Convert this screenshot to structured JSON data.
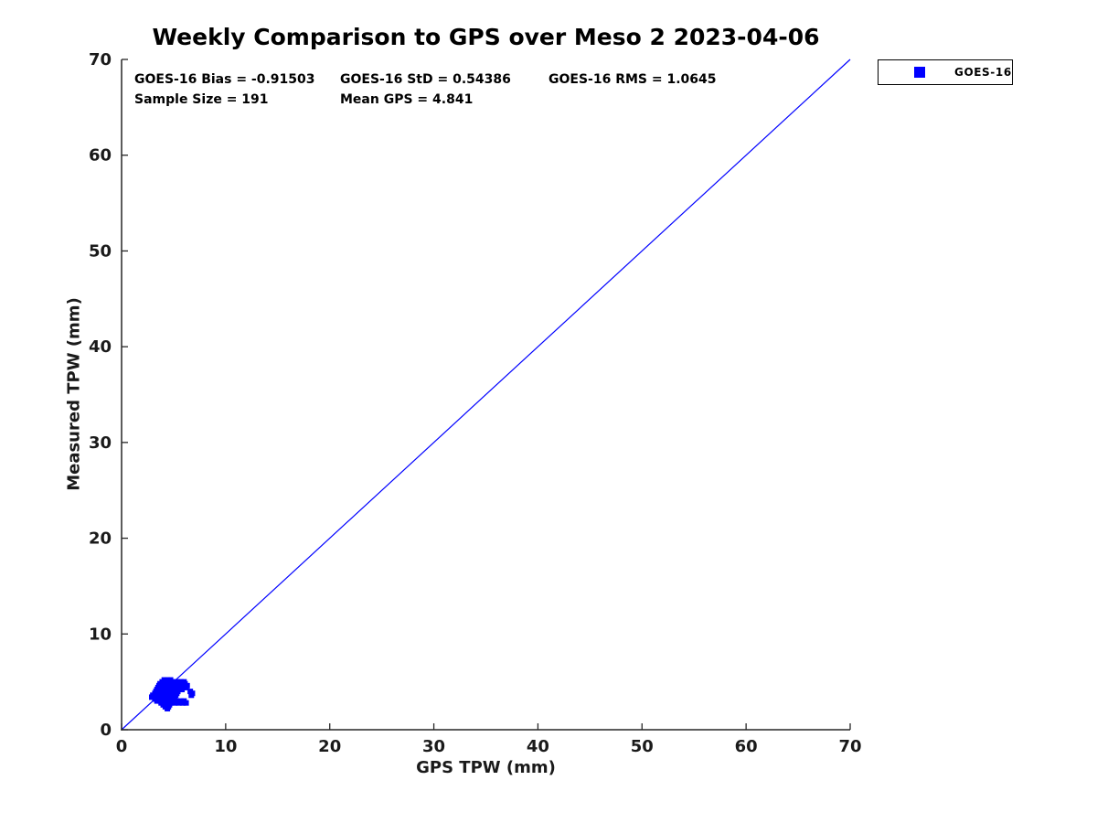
{
  "page": {
    "background": "#ffffff"
  },
  "chart_data": {
    "type": "scatter",
    "title": "Weekly Comparison to GPS over Meso 2 2023-04-06",
    "xlabel": "GPS TPW (mm)",
    "ylabel": "Measured TPW (mm)",
    "xlim": [
      0,
      70
    ],
    "ylim": [
      0,
      70
    ],
    "x_ticks": [
      0,
      10,
      20,
      30,
      40,
      50,
      60,
      70
    ],
    "y_ticks": [
      0,
      10,
      20,
      30,
      40,
      50,
      60,
      70
    ],
    "grid": false,
    "axis_color": "#262626",
    "stats": {
      "bias": "GOES-16 Bias = -0.91503",
      "std": "GOES-16 StD = 0.54386",
      "rms": "GOES-16 RMS = 1.0645",
      "sample_size": "Sample Size = 191",
      "mean_gps": "Mean GPS = 4.841"
    },
    "legend": {
      "position": "top-right-outside",
      "entries": [
        {
          "label": "GOES-16",
          "marker": "square",
          "color": "#0000ff"
        }
      ]
    },
    "reference_line": {
      "x": [
        0,
        70
      ],
      "y": [
        0,
        70
      ],
      "color": "#0000ff"
    },
    "series": [
      {
        "name": "GOES-16",
        "marker": "square",
        "color": "#0000ff",
        "points": [
          [
            4.1,
            5.2
          ],
          [
            4.4,
            5.2
          ],
          [
            4.7,
            5.2
          ],
          [
            3.9,
            5.0
          ],
          [
            4.2,
            5.0
          ],
          [
            4.5,
            5.0
          ],
          [
            4.8,
            5.0
          ],
          [
            5.1,
            5.0
          ],
          [
            5.4,
            5.0
          ],
          [
            5.7,
            5.0
          ],
          [
            6.0,
            5.0
          ],
          [
            3.7,
            4.8
          ],
          [
            4.0,
            4.8
          ],
          [
            4.3,
            4.8
          ],
          [
            4.6,
            4.8
          ],
          [
            4.9,
            4.8
          ],
          [
            5.2,
            4.8
          ],
          [
            5.5,
            4.8
          ],
          [
            5.8,
            4.8
          ],
          [
            6.1,
            4.8
          ],
          [
            3.6,
            4.6
          ],
          [
            3.9,
            4.6
          ],
          [
            4.2,
            4.6
          ],
          [
            4.5,
            4.6
          ],
          [
            4.8,
            4.6
          ],
          [
            5.1,
            4.6
          ],
          [
            5.4,
            4.6
          ],
          [
            5.7,
            4.6
          ],
          [
            6.0,
            4.6
          ],
          [
            6.3,
            4.6
          ],
          [
            3.5,
            4.4
          ],
          [
            3.8,
            4.4
          ],
          [
            4.1,
            4.4
          ],
          [
            4.4,
            4.4
          ],
          [
            4.7,
            4.4
          ],
          [
            5.0,
            4.4
          ],
          [
            5.3,
            4.4
          ],
          [
            5.6,
            4.4
          ],
          [
            5.9,
            4.4
          ],
          [
            6.2,
            4.4
          ],
          [
            3.4,
            4.2
          ],
          [
            3.7,
            4.2
          ],
          [
            4.0,
            4.2
          ],
          [
            4.3,
            4.2
          ],
          [
            4.6,
            4.2
          ],
          [
            4.9,
            4.2
          ],
          [
            5.2,
            4.2
          ],
          [
            5.5,
            4.2
          ],
          [
            5.8,
            4.2
          ],
          [
            3.3,
            4.0
          ],
          [
            3.6,
            4.0
          ],
          [
            3.9,
            4.0
          ],
          [
            4.2,
            4.0
          ],
          [
            4.5,
            4.0
          ],
          [
            4.8,
            4.0
          ],
          [
            5.1,
            4.0
          ],
          [
            5.4,
            4.0
          ],
          [
            6.6,
            4.0
          ],
          [
            3.2,
            3.8
          ],
          [
            3.5,
            3.8
          ],
          [
            3.8,
            3.8
          ],
          [
            4.1,
            3.8
          ],
          [
            4.4,
            3.8
          ],
          [
            4.7,
            3.8
          ],
          [
            5.0,
            3.8
          ],
          [
            5.3,
            3.8
          ],
          [
            6.8,
            3.8
          ],
          [
            3.0,
            3.6
          ],
          [
            3.4,
            3.6
          ],
          [
            3.7,
            3.6
          ],
          [
            4.0,
            3.6
          ],
          [
            4.3,
            3.6
          ],
          [
            4.6,
            3.6
          ],
          [
            4.9,
            3.6
          ],
          [
            5.2,
            3.6
          ],
          [
            6.7,
            3.6
          ],
          [
            2.9,
            3.4
          ],
          [
            3.3,
            3.4
          ],
          [
            3.6,
            3.4
          ],
          [
            3.9,
            3.4
          ],
          [
            4.2,
            3.4
          ],
          [
            4.5,
            3.4
          ],
          [
            4.8,
            3.4
          ],
          [
            5.1,
            3.4
          ],
          [
            3.2,
            3.2
          ],
          [
            3.5,
            3.2
          ],
          [
            3.8,
            3.2
          ],
          [
            4.1,
            3.2
          ],
          [
            4.4,
            3.2
          ],
          [
            4.7,
            3.2
          ],
          [
            5.0,
            3.2
          ],
          [
            3.4,
            3.0
          ],
          [
            3.7,
            3.0
          ],
          [
            4.0,
            3.0
          ],
          [
            4.3,
            3.0
          ],
          [
            4.6,
            3.0
          ],
          [
            4.9,
            3.0
          ],
          [
            5.3,
            3.0
          ],
          [
            5.7,
            3.0
          ],
          [
            6.0,
            3.0
          ],
          [
            3.8,
            2.8
          ],
          [
            4.1,
            2.8
          ],
          [
            4.4,
            2.8
          ],
          [
            4.7,
            2.8
          ],
          [
            5.1,
            2.8
          ],
          [
            5.5,
            2.8
          ],
          [
            5.9,
            2.8
          ],
          [
            6.2,
            2.8
          ],
          [
            4.0,
            2.6
          ],
          [
            4.3,
            2.6
          ],
          [
            4.6,
            2.6
          ],
          [
            4.2,
            2.4
          ],
          [
            4.5,
            2.4
          ],
          [
            4.4,
            2.2
          ]
        ]
      }
    ]
  }
}
